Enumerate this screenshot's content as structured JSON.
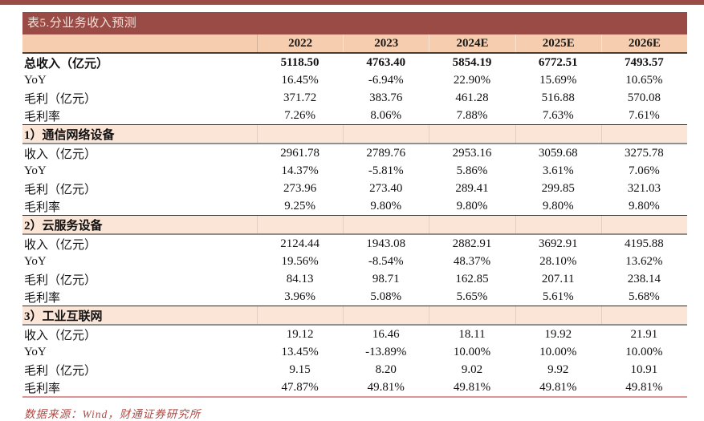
{
  "colors": {
    "brick": "#9B4B45",
    "header_fill": "#F6CDAF",
    "section_fill": "#FBE5D7",
    "bottom_rule": "#DA9694",
    "source_red": "#AF4B45"
  },
  "table": {
    "title": "表5.分业务收入预测",
    "columns": [
      "2022",
      "2023",
      "2024E",
      "2025E",
      "2026E"
    ],
    "sections": [
      {
        "header": null,
        "rows": [
          {
            "label": "总收入（亿元）",
            "bold": true,
            "values": [
              "5118.50",
              "4763.40",
              "5854.19",
              "6772.51",
              "7493.57"
            ]
          },
          {
            "label": "YoY",
            "bold": false,
            "values": [
              "16.45%",
              "-6.94%",
              "22.90%",
              "15.69%",
              "10.65%"
            ]
          },
          {
            "label": "毛利（亿元）",
            "bold": false,
            "values": [
              "371.72",
              "383.76",
              "461.28",
              "516.88",
              "570.08"
            ]
          },
          {
            "label": "毛利率",
            "bold": false,
            "values": [
              "7.26%",
              "8.06%",
              "7.88%",
              "7.63%",
              "7.61%"
            ]
          }
        ]
      },
      {
        "header": "1）通信网络设备",
        "rows": [
          {
            "label": "收入（亿元）",
            "bold": false,
            "values": [
              "2961.78",
              "2789.76",
              "2953.16",
              "3059.68",
              "3275.78"
            ]
          },
          {
            "label": "YoY",
            "bold": false,
            "values": [
              "14.37%",
              "-5.81%",
              "5.86%",
              "3.61%",
              "7.06%"
            ]
          },
          {
            "label": "毛利（亿元）",
            "bold": false,
            "values": [
              "273.96",
              "273.40",
              "289.41",
              "299.85",
              "321.03"
            ]
          },
          {
            "label": "毛利率",
            "bold": false,
            "values": [
              "9.25%",
              "9.80%",
              "9.80%",
              "9.80%",
              "9.80%"
            ]
          }
        ]
      },
      {
        "header": "2）云服务设备",
        "rows": [
          {
            "label": "收入（亿元）",
            "bold": false,
            "values": [
              "2124.44",
              "1943.08",
              "2882.91",
              "3692.91",
              "4195.88"
            ]
          },
          {
            "label": "YoY",
            "bold": false,
            "values": [
              "19.56%",
              "-8.54%",
              "48.37%",
              "28.10%",
              "13.62%"
            ]
          },
          {
            "label": "毛利（亿元）",
            "bold": false,
            "values": [
              "84.13",
              "98.71",
              "162.85",
              "207.11",
              "238.14"
            ]
          },
          {
            "label": "毛利率",
            "bold": false,
            "values": [
              "3.96%",
              "5.08%",
              "5.65%",
              "5.61%",
              "5.68%"
            ]
          }
        ]
      },
      {
        "header": "3）工业互联网",
        "rows": [
          {
            "label": "收入（亿元）",
            "bold": false,
            "values": [
              "19.12",
              "16.46",
              "18.11",
              "19.92",
              "21.91"
            ]
          },
          {
            "label": "YoY",
            "bold": false,
            "values": [
              "13.45%",
              "-13.89%",
              "10.00%",
              "10.00%",
              "10.00%"
            ]
          },
          {
            "label": "毛利（亿元）",
            "bold": false,
            "values": [
              "9.15",
              "8.20",
              "9.02",
              "9.92",
              "10.91"
            ]
          },
          {
            "label": "毛利率",
            "bold": false,
            "values": [
              "47.87%",
              "49.81%",
              "49.81%",
              "49.81%",
              "49.81%"
            ]
          }
        ]
      }
    ],
    "source_note": "数据来源：Wind，财通证券研究所"
  }
}
